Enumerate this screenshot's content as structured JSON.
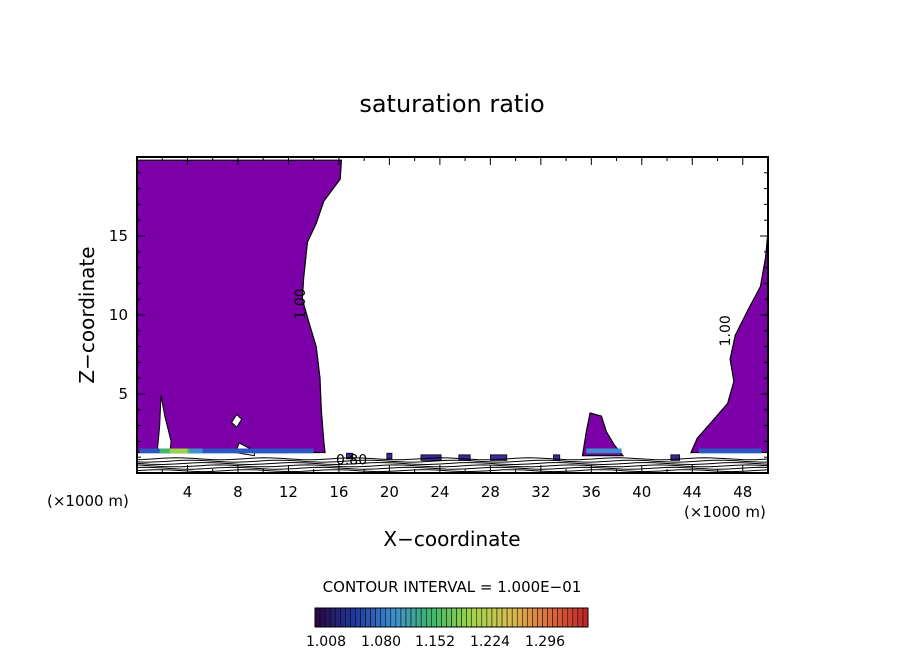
{
  "chart_data": {
    "type": "heatmap",
    "title": "saturation ratio",
    "xlabel": "X−coordinate",
    "ylabel": "Z−coordinate",
    "x_unit": "(×1000 m)",
    "y_unit": "(×1000 m)",
    "xlim": [
      0,
      50
    ],
    "ylim": [
      0,
      20
    ],
    "x_ticks": [
      4,
      8,
      12,
      16,
      20,
      24,
      28,
      32,
      36,
      40,
      44,
      48
    ],
    "y_ticks": [
      5,
      10,
      15
    ],
    "contour_interval_text": "CONTOUR INTERVAL = 1.000E−01",
    "contour_labels": [
      {
        "text": "1.00",
        "x": 13.3,
        "z": 10.7
      },
      {
        "text": "1.00",
        "x": 47.0,
        "z": 9.0
      },
      {
        "text": "0.80",
        "x": 17.0,
        "z": 0.55
      }
    ],
    "colorbar": {
      "labels": [
        "1.008",
        "1.080",
        "1.152",
        "1.224",
        "1.296"
      ],
      "colors": [
        "#2a0a4a",
        "#1f3aa0",
        "#3f8fd0",
        "#3fb86a",
        "#9ed44a",
        "#d8c050",
        "#e07040",
        "#c02828"
      ]
    },
    "saturated_color": "#7b00a8",
    "saturated_left_boundary": [
      [
        0,
        19.8
      ],
      [
        16.2,
        19.8
      ],
      [
        16.1,
        18.6
      ],
      [
        14.8,
        17.2
      ],
      [
        14.2,
        15.8
      ],
      [
        13.5,
        14.6
      ],
      [
        13.2,
        12.3
      ],
      [
        13.1,
        11.0
      ],
      [
        13.6,
        9.6
      ],
      [
        14.2,
        8.0
      ],
      [
        14.5,
        6.0
      ],
      [
        14.6,
        4.0
      ],
      [
        14.8,
        2.0
      ],
      [
        14.9,
        1.3
      ],
      [
        0,
        1.3
      ]
    ],
    "saturated_right_boundary": [
      [
        50,
        15.3
      ],
      [
        50,
        1.3
      ],
      [
        43.9,
        1.3
      ],
      [
        44.4,
        2.2
      ],
      [
        45.6,
        3.3
      ],
      [
        46.8,
        4.4
      ],
      [
        47.3,
        5.8
      ],
      [
        47.0,
        7.2
      ],
      [
        47.4,
        8.7
      ],
      [
        48.4,
        10.3
      ],
      [
        49.4,
        11.8
      ],
      [
        49.8,
        13.6
      ],
      [
        50,
        15.3
      ]
    ],
    "saturated_bump": [
      [
        35.3,
        1.1
      ],
      [
        35.6,
        2.6
      ],
      [
        35.9,
        3.8
      ],
      [
        36.8,
        3.6
      ],
      [
        37.2,
        2.6
      ],
      [
        37.8,
        1.8
      ],
      [
        38.5,
        1.1
      ]
    ],
    "unsaturated_holes": [
      [
        [
          1.6,
          1.3
        ],
        [
          1.8,
          3.0
        ],
        [
          1.9,
          4.9
        ],
        [
          2.2,
          3.6
        ],
        [
          2.7,
          2.0
        ],
        [
          2.6,
          1.3
        ]
      ],
      [
        [
          7.8,
          1.3
        ],
        [
          8.1,
          1.9
        ],
        [
          9.3,
          1.4
        ],
        [
          9.3,
          1.1
        ]
      ],
      [
        [
          7.5,
          3.2
        ],
        [
          7.9,
          3.7
        ],
        [
          8.3,
          3.4
        ],
        [
          7.9,
          2.9
        ]
      ]
    ],
    "surface_isolines_z": [
      0.15,
      0.3,
      0.45,
      0.6,
      0.75,
      0.9
    ]
  }
}
